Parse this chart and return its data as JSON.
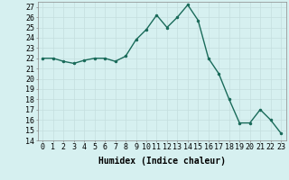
{
  "x": [
    0,
    1,
    2,
    3,
    4,
    5,
    6,
    7,
    8,
    9,
    10,
    11,
    12,
    13,
    14,
    15,
    16,
    17,
    18,
    19,
    20,
    21,
    22,
    23
  ],
  "y": [
    22,
    22,
    21.7,
    21.5,
    21.8,
    22,
    22,
    21.7,
    22.2,
    23.8,
    24.8,
    26.2,
    25,
    26,
    27.2,
    25.7,
    22,
    20.5,
    18,
    15.7,
    15.7,
    17,
    16,
    14.7
  ],
  "line_color": "#1a6b5a",
  "marker": ".",
  "marker_size": 3,
  "background_color": "#d6f0f0",
  "grid_color": "#c4dede",
  "xlabel": "Humidex (Indice chaleur)",
  "xlabel_fontsize": 7,
  "ylim": [
    14,
    27.5
  ],
  "yticks": [
    14,
    15,
    16,
    17,
    18,
    19,
    20,
    21,
    22,
    23,
    24,
    25,
    26,
    27
  ],
  "xticks": [
    0,
    1,
    2,
    3,
    4,
    5,
    6,
    7,
    8,
    9,
    10,
    11,
    12,
    13,
    14,
    15,
    16,
    17,
    18,
    19,
    20,
    21,
    22,
    23
  ],
  "tick_fontsize": 6,
  "line_width": 1.0
}
